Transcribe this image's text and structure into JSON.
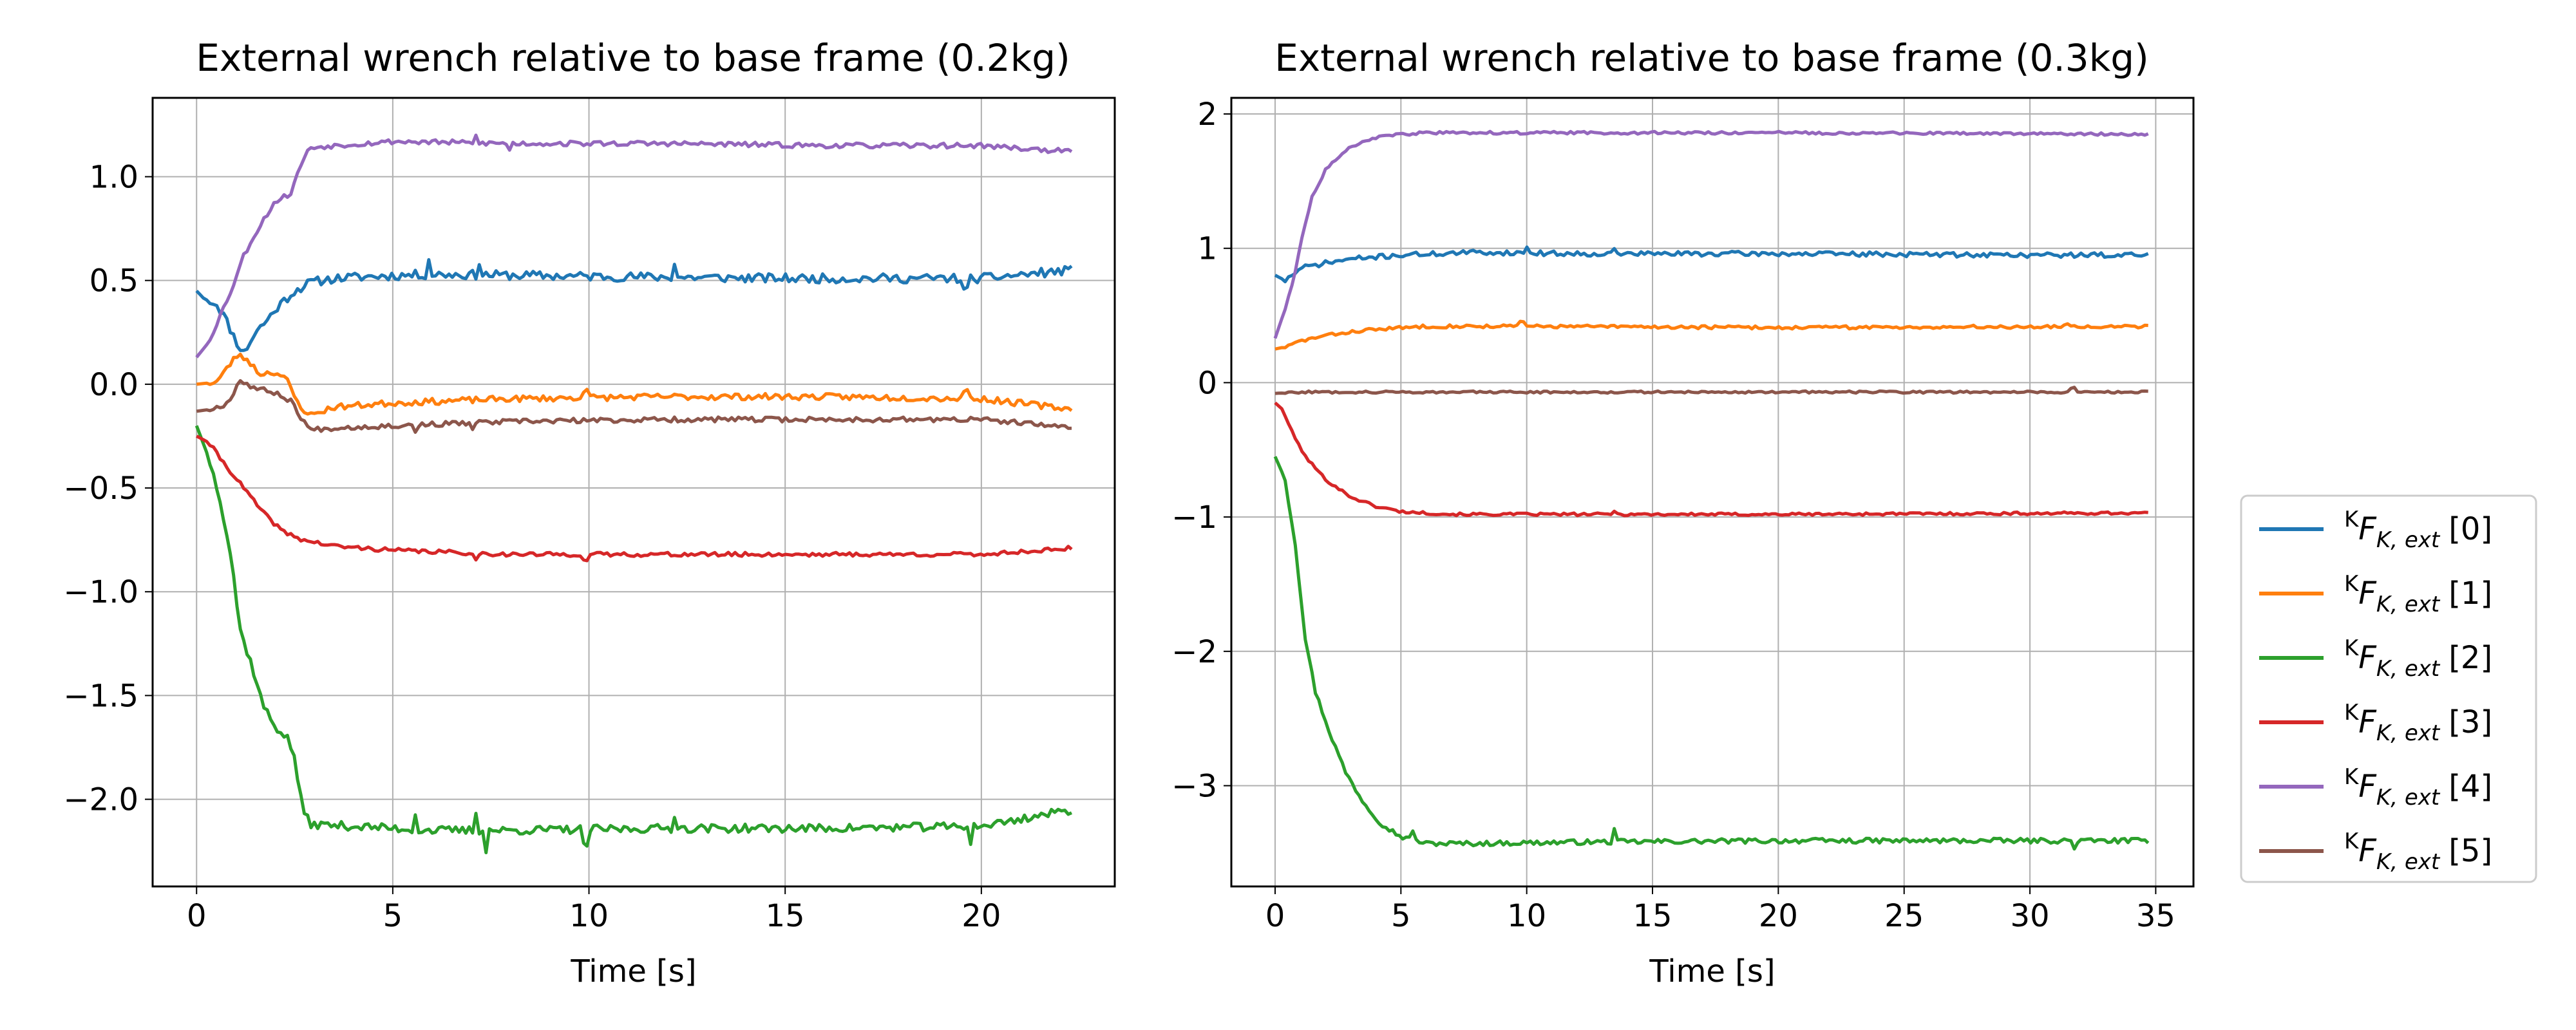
{
  "chart_data": [
    {
      "type": "line",
      "title": "External wrench relative to base frame (0.2kg)",
      "xlabel": "Time [s]",
      "ylabel": "",
      "xlim": [
        -1.12,
        23.4
      ],
      "ylim": [
        -2.42,
        1.38
      ],
      "grid": true,
      "xticks": [
        0,
        5,
        10,
        15,
        20
      ],
      "xtick_labels": [
        "0",
        "5",
        "10",
        "15",
        "20"
      ],
      "yticks": [
        1.0,
        0.5,
        0.0,
        -0.5,
        -1.0,
        -1.5,
        -2.0
      ],
      "ytick_labels": [
        "1.0",
        "0.5",
        "0.0",
        "−0.5",
        "−1.0",
        "−1.5",
        "−2.0"
      ],
      "x_end": 22.3,
      "series": [
        {
          "name": "0",
          "color": "#1f77b4",
          "seed": 11,
          "noise": 0.022,
          "spikes": [
            [
              5.9,
              0.07
            ],
            [
              7.2,
              0.06
            ],
            [
              12.2,
              0.07
            ],
            [
              19.6,
              -0.06
            ]
          ],
          "points": [
            [
              0,
              0.45
            ],
            [
              0.2,
              0.41
            ],
            [
              0.5,
              0.39
            ],
            [
              0.7,
              0.33
            ],
            [
              1.0,
              0.21
            ],
            [
              1.2,
              0.15
            ],
            [
              1.5,
              0.25
            ],
            [
              1.8,
              0.31
            ],
            [
              2.1,
              0.38
            ],
            [
              2.5,
              0.45
            ],
            [
              2.9,
              0.49
            ],
            [
              3.5,
              0.51
            ],
            [
              4.5,
              0.52
            ],
            [
              6,
              0.53
            ],
            [
              10,
              0.52
            ],
            [
              15,
              0.51
            ],
            [
              20,
              0.51
            ],
            [
              22.3,
              0.55
            ]
          ]
        },
        {
          "name": "1",
          "color": "#ff7f0e",
          "seed": 23,
          "noise": 0.015,
          "spikes": [
            [
              9.9,
              0.04
            ],
            [
              19.6,
              0.04
            ]
          ],
          "points": [
            [
              0,
              0.0
            ],
            [
              0.5,
              0.01
            ],
            [
              0.8,
              0.08
            ],
            [
              1.0,
              0.14
            ],
            [
              1.3,
              0.12
            ],
            [
              1.6,
              0.05
            ],
            [
              2.0,
              0.06
            ],
            [
              2.3,
              0.02
            ],
            [
              2.6,
              -0.1
            ],
            [
              2.9,
              -0.15
            ],
            [
              3.5,
              -0.11
            ],
            [
              5,
              -0.09
            ],
            [
              8,
              -0.07
            ],
            [
              12,
              -0.06
            ],
            [
              16,
              -0.06
            ],
            [
              20,
              -0.07
            ],
            [
              22.3,
              -0.12
            ]
          ]
        },
        {
          "name": "2",
          "color": "#2ca02c",
          "seed": 37,
          "noise": 0.02,
          "spikes": [
            [
              5.6,
              0.07
            ],
            [
              7.1,
              0.08
            ],
            [
              7.4,
              -0.09
            ],
            [
              9.9,
              -0.08
            ],
            [
              12.2,
              0.07
            ],
            [
              19.7,
              -0.07
            ]
          ],
          "points": [
            [
              0,
              -0.2
            ],
            [
              0.3,
              -0.35
            ],
            [
              0.6,
              -0.55
            ],
            [
              0.9,
              -0.85
            ],
            [
              1.1,
              -1.18
            ],
            [
              1.4,
              -1.35
            ],
            [
              1.7,
              -1.55
            ],
            [
              2.0,
              -1.65
            ],
            [
              2.3,
              -1.7
            ],
            [
              2.5,
              -1.8
            ],
            [
              2.7,
              -2.05
            ],
            [
              2.9,
              -2.12
            ],
            [
              4,
              -2.13
            ],
            [
              6,
              -2.15
            ],
            [
              8,
              -2.15
            ],
            [
              12,
              -2.14
            ],
            [
              16,
              -2.14
            ],
            [
              20,
              -2.13
            ],
            [
              22.3,
              -2.05
            ]
          ]
        },
        {
          "name": "3",
          "color": "#d62728",
          "seed": 41,
          "noise": 0.01,
          "spikes": [
            [
              7.1,
              -0.04
            ],
            [
              9.9,
              -0.03
            ]
          ],
          "points": [
            [
              0,
              -0.25
            ],
            [
              0.3,
              -0.28
            ],
            [
              0.7,
              -0.38
            ],
            [
              1.2,
              -0.5
            ],
            [
              1.7,
              -0.62
            ],
            [
              2.2,
              -0.71
            ],
            [
              2.7,
              -0.75
            ],
            [
              3.5,
              -0.78
            ],
            [
              5,
              -0.8
            ],
            [
              8,
              -0.82
            ],
            [
              12,
              -0.82
            ],
            [
              16,
              -0.82
            ],
            [
              20,
              -0.82
            ],
            [
              22.3,
              -0.79
            ]
          ]
        },
        {
          "name": "4",
          "color": "#9467bd",
          "seed": 53,
          "noise": 0.012,
          "spikes": [
            [
              7.1,
              0.03
            ],
            [
              8.0,
              -0.03
            ]
          ],
          "points": [
            [
              0,
              0.13
            ],
            [
              0.3,
              0.2
            ],
            [
              0.6,
              0.33
            ],
            [
              0.9,
              0.46
            ],
            [
              1.2,
              0.62
            ],
            [
              1.6,
              0.76
            ],
            [
              2.0,
              0.88
            ],
            [
              2.4,
              0.92
            ],
            [
              2.7,
              1.08
            ],
            [
              2.9,
              1.14
            ],
            [
              3.5,
              1.15
            ],
            [
              5,
              1.17
            ],
            [
              8,
              1.16
            ],
            [
              12,
              1.16
            ],
            [
              16,
              1.15
            ],
            [
              20,
              1.15
            ],
            [
              22.3,
              1.12
            ]
          ]
        },
        {
          "name": "5",
          "color": "#8c564b",
          "seed": 67,
          "noise": 0.012,
          "spikes": [
            [
              5.6,
              -0.03
            ],
            [
              7.0,
              -0.03
            ]
          ],
          "points": [
            [
              0,
              -0.13
            ],
            [
              0.4,
              -0.12
            ],
            [
              0.8,
              -0.09
            ],
            [
              1.1,
              0.02
            ],
            [
              1.5,
              -0.02
            ],
            [
              2.0,
              -0.04
            ],
            [
              2.4,
              -0.08
            ],
            [
              2.7,
              -0.17
            ],
            [
              2.9,
              -0.22
            ],
            [
              3.5,
              -0.21
            ],
            [
              5,
              -0.2
            ],
            [
              8,
              -0.18
            ],
            [
              12,
              -0.17
            ],
            [
              16,
              -0.17
            ],
            [
              20,
              -0.17
            ],
            [
              22.3,
              -0.21
            ]
          ]
        }
      ]
    },
    {
      "type": "line",
      "title": "External wrench relative to base frame (0.3kg)",
      "xlabel": "Time [s]",
      "ylabel": "",
      "xlim": [
        -1.74,
        36.5
      ],
      "ylim": [
        -3.75,
        2.12
      ],
      "grid": true,
      "xticks": [
        0,
        5,
        10,
        15,
        20,
        25,
        30,
        35
      ],
      "xtick_labels": [
        "0",
        "5",
        "10",
        "15",
        "20",
        "25",
        "30",
        "35"
      ],
      "yticks": [
        2,
        1,
        0,
        -1,
        -2,
        -3
      ],
      "ytick_labels": [
        "2",
        "1",
        "0",
        "−1",
        "−2",
        "−3"
      ],
      "x_end": 34.7,
      "series": [
        {
          "name": "0",
          "color": "#1f77b4",
          "seed": 71,
          "noise": 0.018,
          "spikes": [
            [
              10.0,
              0.05
            ],
            [
              13.5,
              0.03
            ]
          ],
          "points": [
            [
              0,
              0.8
            ],
            [
              0.4,
              0.76
            ],
            [
              0.8,
              0.82
            ],
            [
              1.2,
              0.86
            ],
            [
              2.0,
              0.89
            ],
            [
              3.0,
              0.92
            ],
            [
              5,
              0.95
            ],
            [
              8,
              0.97
            ],
            [
              12,
              0.96
            ],
            [
              20,
              0.96
            ],
            [
              30,
              0.95
            ],
            [
              34.7,
              0.95
            ]
          ]
        },
        {
          "name": "1",
          "color": "#ff7f0e",
          "seed": 83,
          "noise": 0.012,
          "spikes": [
            [
              9.8,
              0.03
            ],
            [
              31.5,
              0.03
            ]
          ],
          "points": [
            [
              0,
              0.25
            ],
            [
              0.5,
              0.27
            ],
            [
              1.0,
              0.31
            ],
            [
              2.0,
              0.35
            ],
            [
              3.5,
              0.39
            ],
            [
              6,
              0.42
            ],
            [
              10,
              0.42
            ],
            [
              20,
              0.41
            ],
            [
              34.7,
              0.42
            ]
          ]
        },
        {
          "name": "2",
          "color": "#2ca02c",
          "seed": 97,
          "noise": 0.018,
          "spikes": [
            [
              5.5,
              0.08
            ],
            [
              13.5,
              0.09
            ],
            [
              31.8,
              -0.06
            ]
          ],
          "points": [
            [
              0,
              -0.55
            ],
            [
              0.4,
              -0.72
            ],
            [
              0.8,
              -1.2
            ],
            [
              1.2,
              -1.9
            ],
            [
              1.6,
              -2.3
            ],
            [
              2.2,
              -2.62
            ],
            [
              2.8,
              -2.9
            ],
            [
              3.5,
              -3.12
            ],
            [
              4.2,
              -3.28
            ],
            [
              5,
              -3.38
            ],
            [
              6,
              -3.43
            ],
            [
              8,
              -3.43
            ],
            [
              12,
              -3.42
            ],
            [
              20,
              -3.41
            ],
            [
              28,
              -3.41
            ],
            [
              34.7,
              -3.41
            ]
          ]
        },
        {
          "name": "3",
          "color": "#d62728",
          "seed": 101,
          "noise": 0.01,
          "spikes": [
            [
              13.5,
              0.03
            ]
          ],
          "points": [
            [
              0,
              -0.15
            ],
            [
              0.3,
              -0.2
            ],
            [
              0.7,
              -0.38
            ],
            [
              1.2,
              -0.55
            ],
            [
              2.0,
              -0.72
            ],
            [
              3.0,
              -0.85
            ],
            [
              4.0,
              -0.92
            ],
            [
              5,
              -0.96
            ],
            [
              7,
              -0.98
            ],
            [
              12,
              -0.98
            ],
            [
              20,
              -0.98
            ],
            [
              34.7,
              -0.97
            ]
          ]
        },
        {
          "name": "4",
          "color": "#9467bd",
          "seed": 113,
          "noise": 0.01,
          "spikes": [],
          "points": [
            [
              0,
              0.33
            ],
            [
              0.4,
              0.55
            ],
            [
              0.8,
              0.82
            ],
            [
              1.1,
              1.12
            ],
            [
              1.5,
              1.4
            ],
            [
              2.0,
              1.58
            ],
            [
              2.7,
              1.72
            ],
            [
              3.5,
              1.8
            ],
            [
              4.5,
              1.84
            ],
            [
              6,
              1.86
            ],
            [
              10,
              1.86
            ],
            [
              20,
              1.86
            ],
            [
              34.7,
              1.85
            ]
          ]
        },
        {
          "name": "5",
          "color": "#8c564b",
          "seed": 127,
          "noise": 0.008,
          "spikes": [
            [
              31.7,
              0.03
            ]
          ],
          "points": [
            [
              0,
              -0.08
            ],
            [
              1,
              -0.07
            ],
            [
              2,
              -0.07
            ],
            [
              10,
              -0.07
            ],
            [
              20,
              -0.07
            ],
            [
              34.7,
              -0.07
            ]
          ]
        }
      ]
    }
  ],
  "legend": {
    "items": [
      {
        "sup": "K",
        "base": "F",
        "sub": "K, ext",
        "index": "[0]",
        "color": "#1f77b4"
      },
      {
        "sup": "K",
        "base": "F",
        "sub": "K, ext",
        "index": "[1]",
        "color": "#ff7f0e"
      },
      {
        "sup": "K",
        "base": "F",
        "sub": "K, ext",
        "index": "[2]",
        "color": "#2ca02c"
      },
      {
        "sup": "K",
        "base": "F",
        "sub": "K, ext",
        "index": "[3]",
        "color": "#d62728"
      },
      {
        "sup": "K",
        "base": "F",
        "sub": "K, ext",
        "index": "[4]",
        "color": "#9467bd"
      },
      {
        "sup": "K",
        "base": "F",
        "sub": "K, ext",
        "index": "[5]",
        "color": "#8c564b"
      }
    ]
  }
}
